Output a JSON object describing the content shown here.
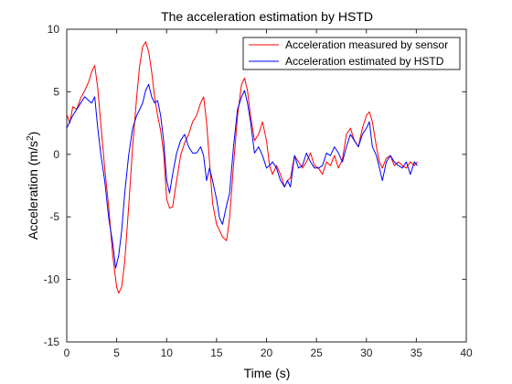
{
  "chart_data": {
    "type": "line",
    "title": "The acceleration estimation by HSTD",
    "xlabel": "Time (s)",
    "ylabel_main": "Acceleration (m/s",
    "ylabel_sup": "2",
    "ylabel_end": ")",
    "xlim": [
      0,
      40
    ],
    "ylim": [
      -15,
      10
    ],
    "xticks": [
      0,
      5,
      10,
      15,
      20,
      25,
      30,
      35,
      40
    ],
    "yticks": [
      -15,
      -10,
      -5,
      0,
      5,
      10
    ],
    "grid": false,
    "legend_position": "top-right",
    "series": [
      {
        "name": "Acceleration measured by sensor",
        "color": "#ff0000",
        "x": [
          0,
          0.3,
          0.6,
          1,
          1.4,
          1.8,
          2.2,
          2.5,
          2.8,
          3.1,
          3.4,
          3.8,
          4.2,
          4.6,
          5,
          5.2,
          5.5,
          5.8,
          6.2,
          6.6,
          7,
          7.3,
          7.6,
          7.9,
          8.2,
          8.5,
          8.8,
          9.1,
          9.4,
          9.7,
          10,
          10.3,
          10.6,
          11,
          11.4,
          11.8,
          12.2,
          12.6,
          13,
          13.4,
          13.7,
          14,
          14.3,
          14.6,
          15,
          15.3,
          15.6,
          16,
          16.3,
          16.7,
          17.1,
          17.5,
          17.8,
          18.1,
          18.4,
          18.8,
          19.2,
          19.6,
          20,
          20.3,
          20.6,
          21,
          21.4,
          21.8,
          22.1,
          22.4,
          22.8,
          23.2,
          23.6,
          24,
          24.4,
          24.8,
          25.2,
          25.6,
          26,
          26.4,
          26.8,
          27.2,
          27.6,
          28,
          28.4,
          28.8,
          29.2,
          29.6,
          30,
          30.3,
          30.6,
          31,
          31.3,
          31.6,
          32,
          32.4,
          32.8,
          33.2,
          33.6,
          34,
          34.4,
          34.8,
          35.1
        ],
        "y": [
          3.2,
          2.5,
          3.8,
          3.6,
          4.5,
          5.1,
          5.8,
          6.6,
          7.1,
          5.3,
          2.6,
          -1.1,
          -4.2,
          -8.1,
          -10.6,
          -11.1,
          -10.6,
          -8.6,
          -4.2,
          0.6,
          4.6,
          7.1,
          8.6,
          9.0,
          8.2,
          6.6,
          4.6,
          3.1,
          1.9,
          0.1,
          -3.6,
          -4.3,
          -4.2,
          -2.1,
          -0.1,
          0.9,
          1.6,
          2.6,
          3.1,
          4.1,
          4.6,
          2.6,
          -0.6,
          -3.9,
          -5.6,
          -6.1,
          -6.6,
          -6.9,
          -5.1,
          -0.9,
          3.1,
          5.6,
          6.1,
          5.1,
          3.1,
          1.1,
          1.6,
          2.6,
          1.1,
          -0.9,
          -1.6,
          -0.9,
          -1.6,
          -2.6,
          -2.1,
          -1.9,
          -0.1,
          -0.6,
          -1.1,
          -0.6,
          0.1,
          -0.9,
          -1.1,
          -1.6,
          -0.6,
          -0.9,
          -0.1,
          -1.1,
          -0.4,
          1.6,
          2.1,
          1.1,
          0.6,
          2.1,
          3.1,
          3.4,
          2.6,
          0.6,
          -0.6,
          -1.1,
          -0.3,
          -0.1,
          -0.9,
          -0.6,
          -0.9,
          -1.1,
          -0.6,
          -0.9,
          -0.6
        ]
      },
      {
        "name": "Acceleration estimated by HSTD",
        "color": "#0000ff",
        "x": [
          0,
          0.3,
          0.6,
          1,
          1.4,
          1.8,
          2.2,
          2.5,
          2.8,
          3.1,
          3.4,
          3.8,
          4.2,
          4.6,
          4.9,
          5.2,
          5.5,
          5.8,
          6.2,
          6.6,
          7,
          7.3,
          7.6,
          7.9,
          8.2,
          8.5,
          8.8,
          9.1,
          9.4,
          9.7,
          10,
          10.3,
          10.6,
          11,
          11.4,
          11.8,
          12.2,
          12.6,
          13,
          13.4,
          13.7,
          14,
          14.3,
          14.6,
          15,
          15.3,
          15.6,
          16,
          16.3,
          16.7,
          17.1,
          17.5,
          17.8,
          18.1,
          18.4,
          18.8,
          19.2,
          19.6,
          20,
          20.3,
          20.6,
          21,
          21.4,
          21.8,
          22.1,
          22.4,
          22.8,
          23.2,
          23.6,
          24,
          24.4,
          24.8,
          25.2,
          25.6,
          26,
          26.4,
          26.8,
          27.2,
          27.6,
          28,
          28.4,
          28.8,
          29.2,
          29.6,
          30,
          30.3,
          30.6,
          31,
          31.3,
          31.6,
          32,
          32.4,
          32.8,
          33.2,
          33.6,
          34,
          34.4,
          34.8,
          35.1
        ],
        "y": [
          2.1,
          2.6,
          3.1,
          3.6,
          4.1,
          4.6,
          4.3,
          4.1,
          4.6,
          2.1,
          0.1,
          -2.1,
          -5.1,
          -7.1,
          -9.1,
          -8.1,
          -6.1,
          -3.1,
          -0.1,
          2.1,
          3.1,
          3.6,
          4.1,
          5.1,
          5.6,
          4.6,
          4.1,
          4.3,
          3.1,
          1.1,
          -2.1,
          -3.1,
          -1.6,
          0.1,
          1.1,
          1.6,
          0.6,
          0.1,
          0.1,
          0.6,
          -0.1,
          -2.1,
          -1.1,
          -2.1,
          -3.6,
          -5.1,
          -5.6,
          -4.1,
          -3.1,
          0.6,
          3.6,
          4.6,
          5.1,
          4.1,
          2.6,
          0.1,
          0.6,
          -0.1,
          -1.1,
          -0.9,
          -0.6,
          -1.1,
          -2.1,
          -2.6,
          -2.1,
          -2.6,
          -0.1,
          -1.1,
          -0.9,
          0.1,
          -0.6,
          -1.1,
          -1.1,
          -0.9,
          0.1,
          -0.1,
          0.6,
          0.1,
          -0.6,
          0.6,
          1.6,
          1.1,
          0.6,
          1.6,
          2.1,
          2.6,
          0.6,
          -0.1,
          -1.1,
          -2.1,
          -0.6,
          -0.1,
          -0.6,
          -0.9,
          -1.1,
          -0.6,
          -1.6,
          -0.6,
          -0.9
        ]
      }
    ]
  }
}
